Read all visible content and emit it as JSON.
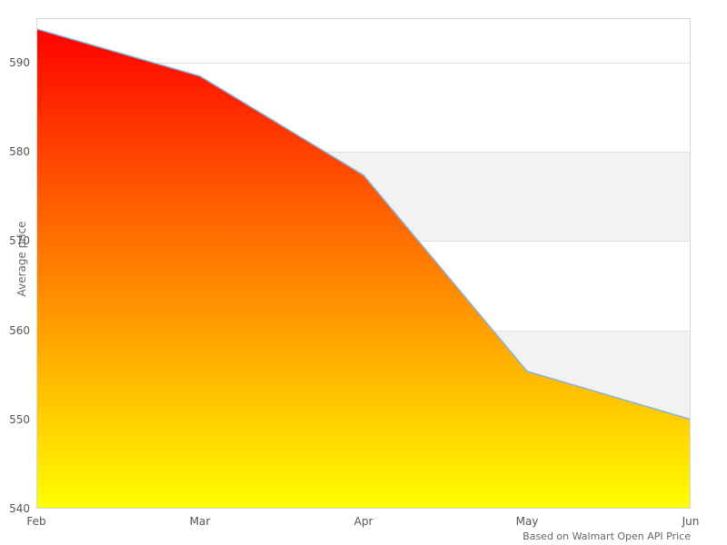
{
  "chart_data": {
    "type": "area",
    "categories": [
      "Feb",
      "Mar",
      "Apr",
      "May",
      "Jun"
    ],
    "values": [
      593.8,
      588.5,
      577.4,
      555.4,
      550
    ],
    "title": "",
    "xlabel": "",
    "ylabel": "Average price",
    "ylim": [
      540,
      595
    ],
    "yticks": [
      540,
      550,
      560,
      570,
      580,
      590
    ],
    "gray_bands": [
      [
        550,
        560
      ],
      [
        570,
        580
      ]
    ],
    "grid": "horizontal-only",
    "legend": "none",
    "colors": {
      "fill_top": "#ff0000",
      "fill_bottom": "#ffff00",
      "line": "#86b3de",
      "band": "#f2f2f2",
      "gridline": "#e0e0e0",
      "border": "#d8d8d8",
      "tick_text": "#555555",
      "muted_text": "#666666"
    }
  },
  "credits": {
    "text": "Based on Walmart Open API Price"
  }
}
